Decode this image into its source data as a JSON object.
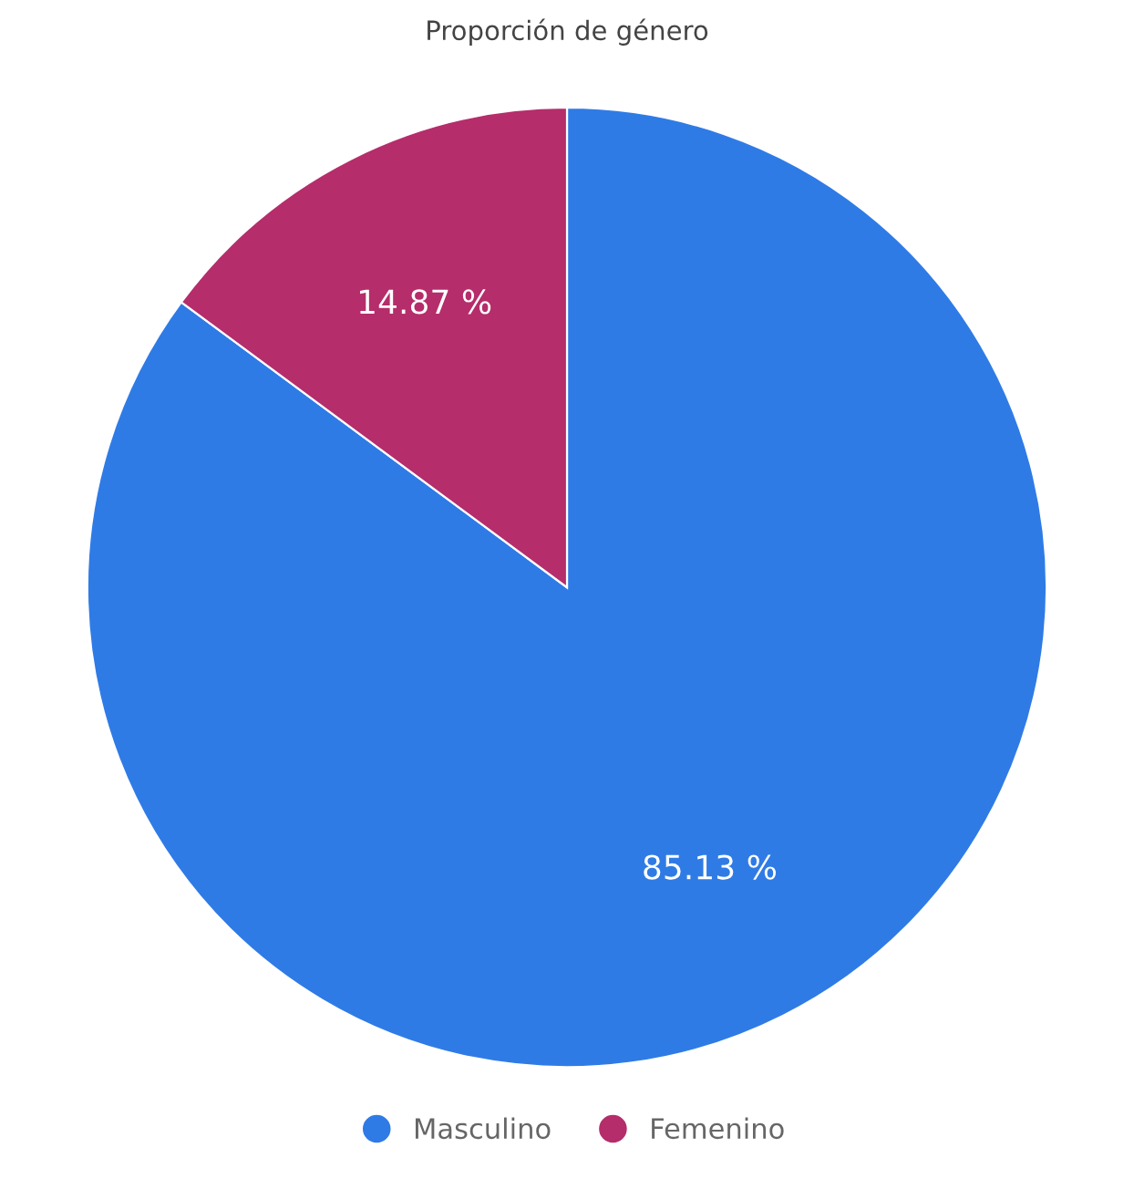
{
  "chart_data": {
    "type": "pie",
    "title": "Proporción de género",
    "categories": [
      "Masculino",
      "Femenino"
    ],
    "values": [
      85.13,
      14.87
    ],
    "colors": [
      "#2f7be6",
      "#b52d6b"
    ],
    "value_labels": [
      "85.13 %",
      "14.87 %"
    ],
    "legend": "bottom"
  }
}
